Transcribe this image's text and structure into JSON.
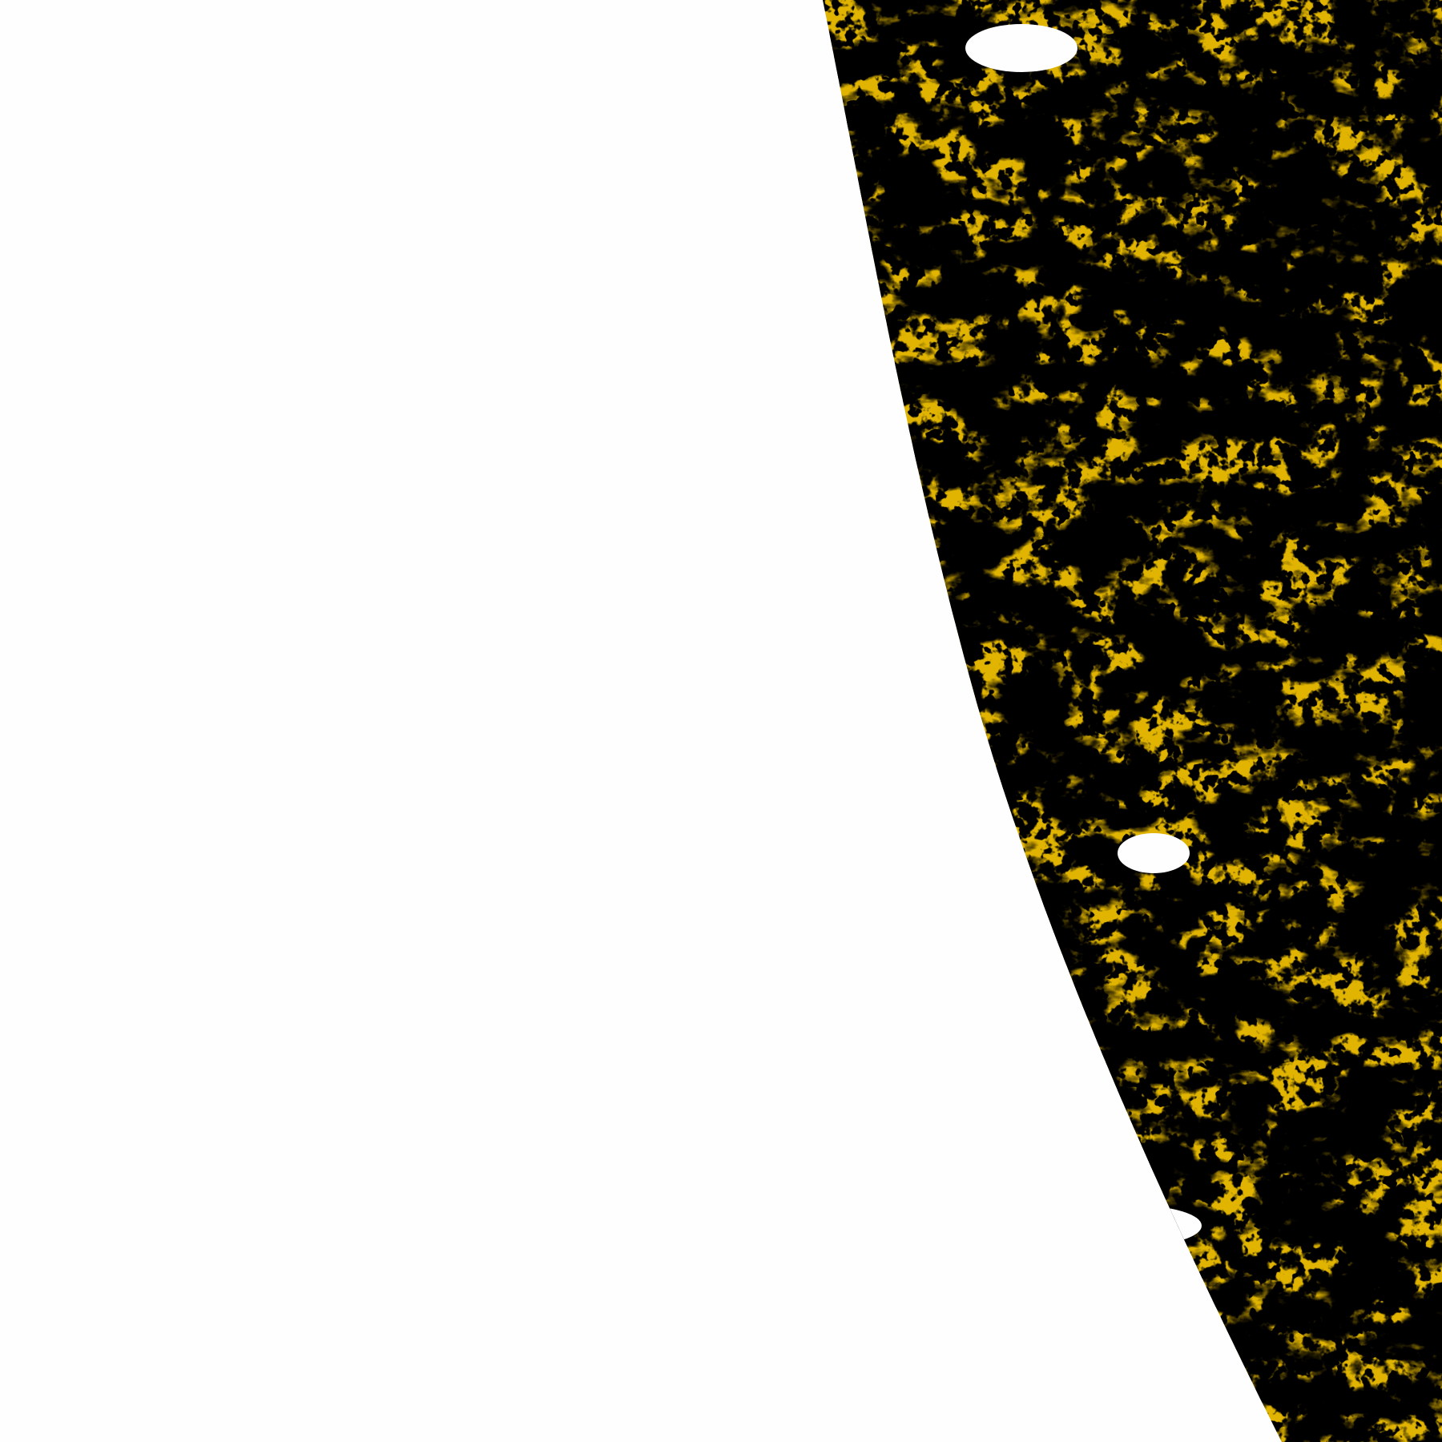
{
  "scene": {
    "type": "satellite false-color classification image",
    "colors": {
      "background": "#fefeff",
      "gold": "#e0b400",
      "brown": "#b08000",
      "dark_purple": "#7b3ab8",
      "periwinkle": "#7b7bf0",
      "magenta": "#cc55dd",
      "pale": "#eeeeff",
      "gray_blue": "#a0a8c8"
    }
  }
}
